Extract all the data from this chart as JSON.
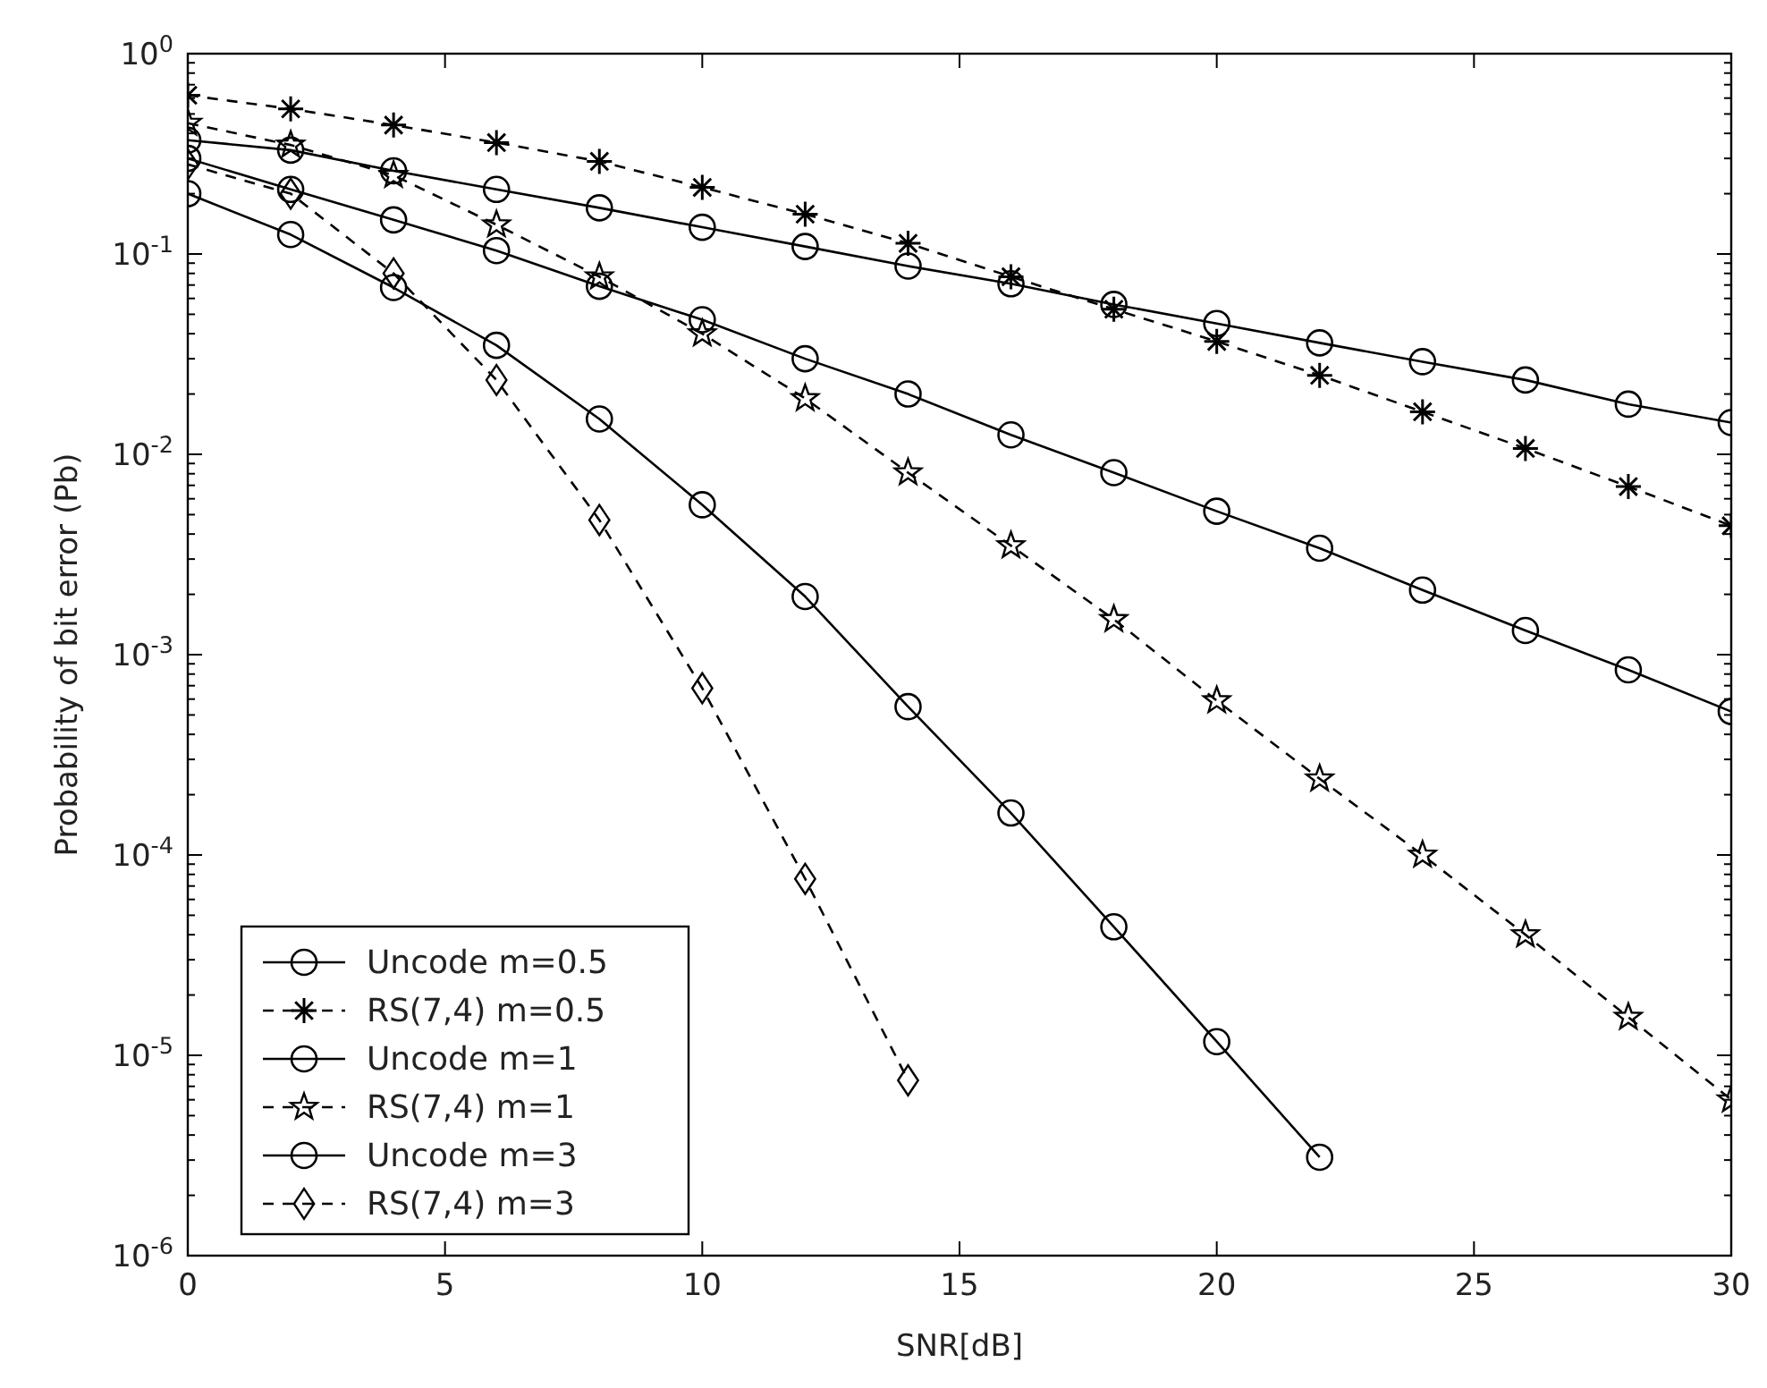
{
  "chart_data": {
    "type": "line",
    "xlabel": "SNR[dB]",
    "ylabel": "Probability of bit error (Pb)",
    "log": "y",
    "grid": false,
    "legend": "bottom left",
    "x": [
      0,
      2,
      4,
      6,
      8,
      10,
      12,
      14,
      16,
      18,
      20,
      22,
      24,
      26,
      28,
      30
    ],
    "xlim": [
      0,
      30
    ],
    "xticks": [
      0,
      5,
      10,
      15,
      20,
      25,
      30
    ],
    "ylim": [
      1e-06,
      1
    ],
    "yticks": [
      {
        "value": 1,
        "label": "10$^{0}$"
      },
      {
        "value": 0.1,
        "label": "10$^{-1}$"
      },
      {
        "value": 0.01,
        "label": "10$^{-2}$"
      },
      {
        "value": 0.001,
        "label": "10$^{-3}$"
      },
      {
        "value": 0.0001,
        "label": "10$^{-4}$"
      },
      {
        "value": 1e-05,
        "label": "10$^{-5}$"
      },
      {
        "value": 1e-06,
        "label": "10$^{-6}$"
      }
    ],
    "series": [
      {
        "name": "Uncode m=0.5",
        "color": "#000000",
        "marker": "circle",
        "line_style": "solid",
        "values": [
          0.37,
          0.33,
          0.26,
          0.21,
          0.17,
          0.136,
          0.109,
          0.087,
          0.071,
          0.056,
          0.045,
          0.036,
          0.029,
          0.0235,
          0.0178,
          0.0144
        ]
      },
      {
        "name": "RS(7,4) m=0.5",
        "color": "#000000",
        "marker": "cross",
        "line_style": "dashed",
        "values": [
          0.62,
          0.53,
          0.44,
          0.36,
          0.29,
          0.215,
          0.158,
          0.113,
          0.077,
          0.053,
          0.0366,
          0.0248,
          0.0163,
          0.0107,
          0.0069,
          0.0044
        ]
      },
      {
        "name": "Uncode m=1",
        "color": "#000000",
        "marker": "circle",
        "line_style": "solid",
        "values": [
          0.3,
          0.21,
          0.148,
          0.104,
          0.069,
          0.047,
          0.03,
          0.02,
          0.0125,
          0.0081,
          0.0052,
          0.0034,
          0.0021,
          0.00132,
          0.00084,
          0.00052
        ]
      },
      {
        "name": "RS(7,4) m=1",
        "color": "#000000",
        "marker": "star",
        "line_style": "dashed",
        "values": [
          0.45,
          0.35,
          0.247,
          0.14,
          0.077,
          0.04,
          0.019,
          0.0081,
          0.0035,
          0.0015,
          0.00059,
          0.00024,
          0.0001,
          4e-05,
          1.55e-05,
          6e-06
        ]
      },
      {
        "name": "Uncode m=3",
        "color": "#000000",
        "marker": "circle",
        "line_style": "solid",
        "x": [
          0,
          2,
          4,
          6,
          8,
          10,
          12,
          14,
          16,
          18,
          20,
          22
        ],
        "values": [
          0.2,
          0.125,
          0.068,
          0.035,
          0.015,
          0.0056,
          0.00195,
          0.00055,
          0.000162,
          4.38e-05,
          1.17e-05,
          3.1e-06
        ]
      },
      {
        "name": "RS(7,4) m=3",
        "color": "#000000",
        "marker": "diamond",
        "line_style": "dashed",
        "x": [
          0,
          2,
          4,
          6,
          8,
          10,
          12,
          14
        ],
        "values": [
          0.28,
          0.2,
          0.08,
          0.0235,
          0.0047,
          0.00068,
          7.6e-05,
          7.5e-06
        ]
      }
    ]
  }
}
